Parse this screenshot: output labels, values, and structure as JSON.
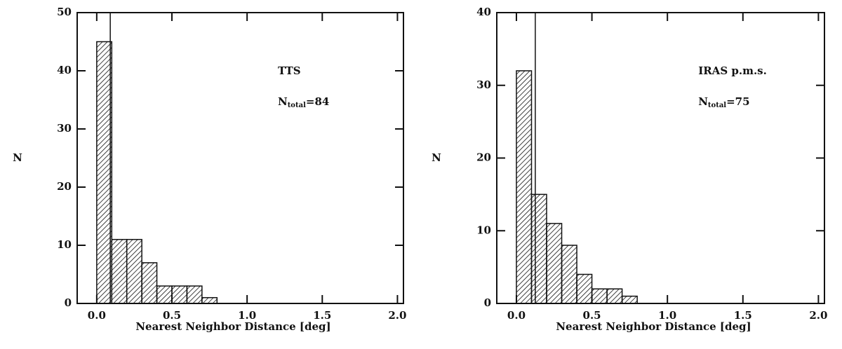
{
  "chart_data": [
    {
      "type": "histogram",
      "xlabel": "Nearest Neighbor Distance [deg]",
      "ylabel": "N",
      "bins": [
        0,
        0.1,
        0.2,
        0.3,
        0.4,
        0.5,
        0.6,
        0.7,
        0.8
      ],
      "values": [
        45,
        11,
        11,
        7,
        3,
        3,
        3,
        1
      ],
      "vline": 0.09,
      "label": "TTS",
      "count_label": {
        "symbol": "N",
        "subscript": "total",
        "text": "=84"
      },
      "xlim": [
        -0.13,
        2.04
      ],
      "xticks": [
        {
          "value": 0,
          "label": "0.0"
        },
        0.5,
        {
          "value": 1,
          "label": "1.0"
        },
        1.5,
        {
          "value": 2,
          "label": "2.0"
        }
      ],
      "ylim": [
        0,
        50
      ],
      "yticks": [
        0,
        10,
        20,
        30,
        40,
        50
      ],
      "color": "#111111"
    },
    {
      "type": "histogram",
      "xlabel": "Nearest Neighbor Distance [deg]",
      "ylabel": "N",
      "bins": [
        0,
        0.1,
        0.2,
        0.3,
        0.4,
        0.5,
        0.6,
        0.7,
        0.8
      ],
      "values": [
        32,
        15,
        11,
        8,
        4,
        2,
        2,
        1
      ],
      "vline": 0.125,
      "label": "IRAS p.m.s.",
      "count_label": {
        "symbol": "N",
        "subscript": "total",
        "text": "=75"
      },
      "xlim": [
        -0.13,
        2.04
      ],
      "xticks": [
        {
          "value": 0,
          "label": "0.0"
        },
        0.5,
        {
          "value": 1,
          "label": "1.0"
        },
        1.5,
        {
          "value": 2,
          "label": "2.0"
        }
      ],
      "ylim": [
        0,
        40
      ],
      "yticks": [
        0,
        10,
        20,
        30,
        40
      ],
      "color": "#111111"
    }
  ]
}
